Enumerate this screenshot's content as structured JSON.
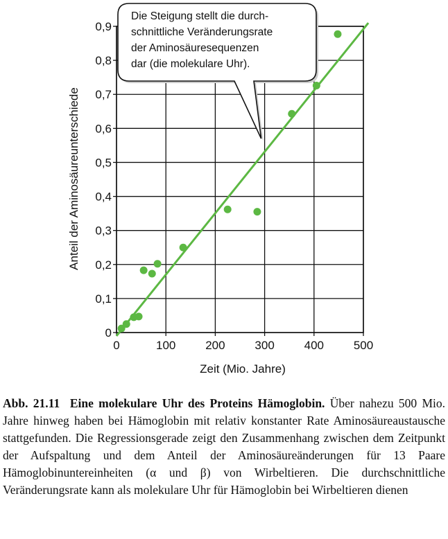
{
  "chart_data": {
    "type": "scatter",
    "xlabel": "Zeit (Mio. Jahre)",
    "ylabel": "Anteil der Aminosäureunterschiede",
    "xlim": [
      0,
      500
    ],
    "ylim": [
      0,
      0.9
    ],
    "xticks": [
      {
        "value": 0,
        "label": "0"
      },
      {
        "value": 100,
        "label": "100"
      },
      {
        "value": 200,
        "label": "200"
      },
      {
        "value": 300,
        "label": "300"
      },
      {
        "value": 400,
        "label": "400"
      },
      {
        "value": 500,
        "label": "500"
      }
    ],
    "yticks": [
      {
        "value": 0,
        "label": "0"
      },
      {
        "value": 0.1,
        "label": "0,1"
      },
      {
        "value": 0.2,
        "label": "0,2"
      },
      {
        "value": 0.3,
        "label": "0,3"
      },
      {
        "value": 0.4,
        "label": "0,4"
      },
      {
        "value": 0.5,
        "label": "0,5"
      },
      {
        "value": 0.6,
        "label": "0,6"
      },
      {
        "value": 0.7,
        "label": "0,7"
      },
      {
        "value": 0.8,
        "label": "0,8"
      },
      {
        "value": 0.9,
        "label": "0,9"
      }
    ],
    "grid": true,
    "points": [
      {
        "x": 10,
        "y": 0.012
      },
      {
        "x": 20,
        "y": 0.025
      },
      {
        "x": 35,
        "y": 0.045
      },
      {
        "x": 45,
        "y": 0.047
      },
      {
        "x": 55,
        "y": 0.183
      },
      {
        "x": 72,
        "y": 0.173
      },
      {
        "x": 83,
        "y": 0.202
      },
      {
        "x": 135,
        "y": 0.25
      },
      {
        "x": 225,
        "y": 0.362
      },
      {
        "x": 285,
        "y": 0.355
      },
      {
        "x": 355,
        "y": 0.643
      },
      {
        "x": 405,
        "y": 0.726
      },
      {
        "x": 448,
        "y": 0.877
      }
    ],
    "regression": {
      "x": [
        0,
        510
      ],
      "y": [
        -0.01,
        0.91
      ]
    },
    "point_color": "#5cb843",
    "line_color": "#5cb843",
    "annotation": {
      "lines": [
        "Die Steigung stellt die durch-",
        "schnittliche Veränderungsrate",
        "der Aminosäuresequenzen",
        "dar (die molekulare Uhr)."
      ],
      "pointer": {
        "x": 293,
        "y": 0.57
      }
    }
  },
  "caption": {
    "figure_number": "Abb. 21.11",
    "title": "Eine molekulare Uhr des Proteins Hämoglobin.",
    "text": "Über nahezu 500 Mio. Jahre hinweg haben bei Hämoglobin mit relativ konstanter Rate Aminosäureaustausche stattgefunden. Die Regressionsgerade zeigt den Zusammenhang zwischen dem Zeitpunkt der Aufspaltung und dem Anteil der Aminosäureänderungen für 13 Paare Hämoglobinuntereinheiten (α und β) von Wirbeltieren. Die durchschnittliche Veränderungsrate kann als molekulare Uhr für Hämoglobin bei Wirbeltieren dienen"
  }
}
